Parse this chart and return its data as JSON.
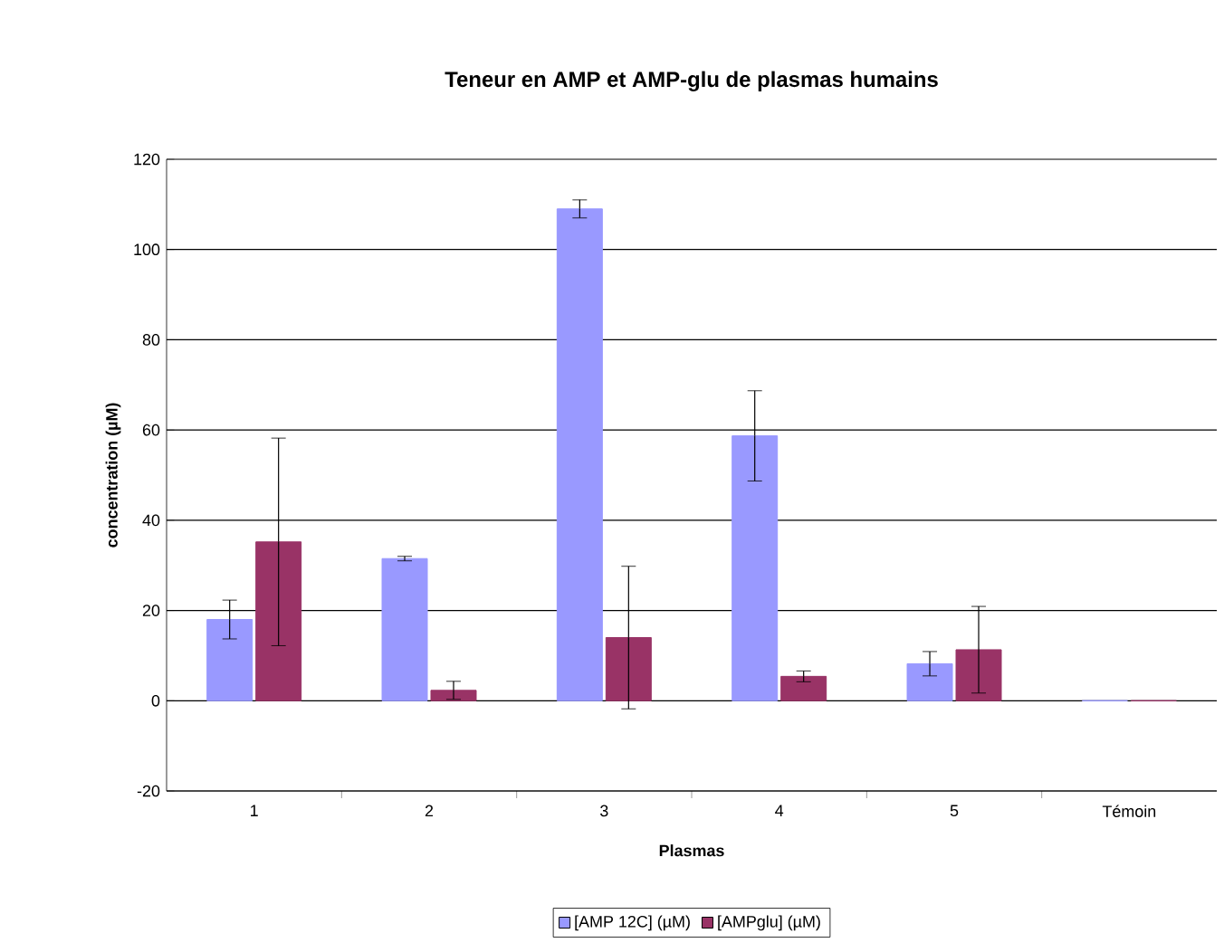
{
  "chart_data": {
    "type": "bar",
    "title": "Teneur en AMP et AMP-glu de plasmas humains",
    "xlabel": "Plasmas",
    "ylabel": "concentration (µM)",
    "categories": [
      "1",
      "2",
      "3",
      "4",
      "5",
      "Témoin"
    ],
    "series": [
      {
        "name": "[AMP 12C] (µM)",
        "color": "#9999ff",
        "values": [
          18,
          31.5,
          109,
          58.7,
          8.2,
          0
        ],
        "errors": [
          4.3,
          0.5,
          2,
          10,
          2.7,
          null
        ]
      },
      {
        "name": "[AMPglu]   (µM)",
        "color": "#993366",
        "values": [
          35.2,
          2.3,
          14,
          5.4,
          11.3,
          0
        ],
        "errors": [
          23,
          2,
          15.8,
          1.2,
          9.6,
          null
        ]
      }
    ],
    "ylim": [
      -20,
      120
    ],
    "yticks": [
      -20,
      0,
      20,
      40,
      60,
      80,
      100,
      120
    ],
    "grid": "y",
    "legend": "bottom"
  }
}
